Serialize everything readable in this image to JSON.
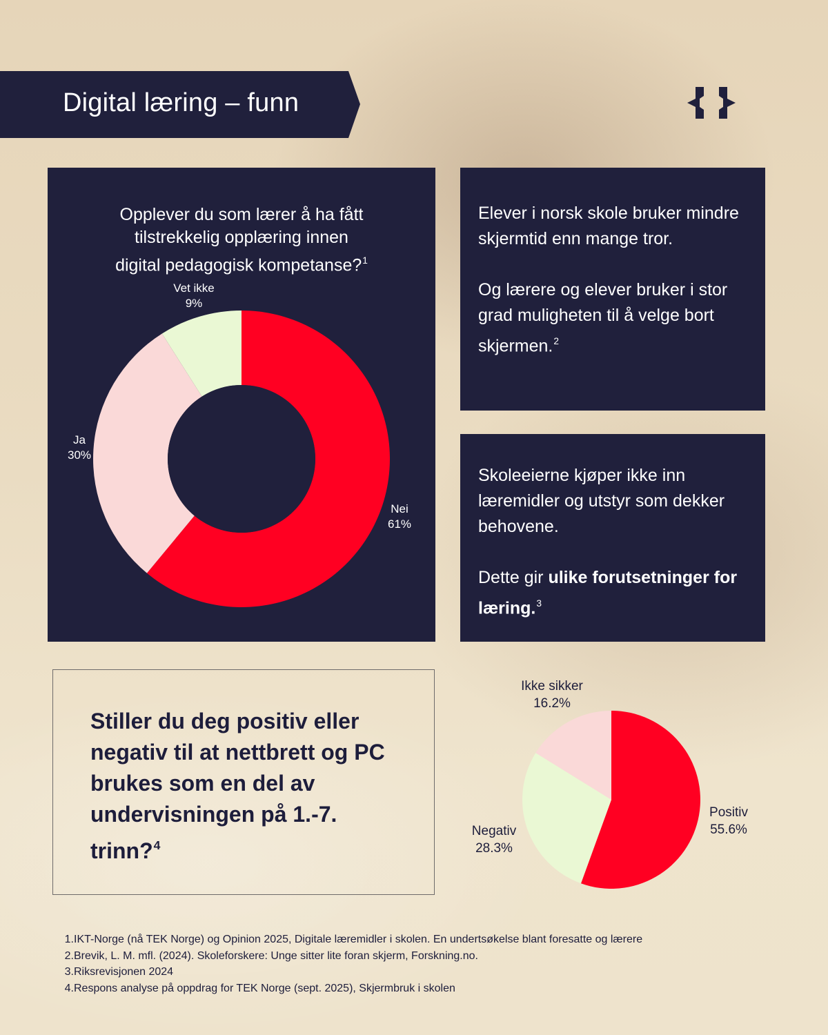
{
  "header": {
    "title": "Digital læring – funn"
  },
  "brand": {
    "logo_icon": "curly-braces-logo-icon",
    "color": "#20203c"
  },
  "donut_panel": {
    "question_lines": [
      "Opplever du som lærer å ha fått",
      "tilstrekkelig opplæring innen",
      "digital pedagogisk kompetanse?"
    ],
    "footnote_ref": "1"
  },
  "text_panel_1": {
    "paragraph1": "Elever i norsk skole bruker mindre skjermtid enn mange tror.",
    "paragraph2": "Og lærere og elever bruker i stor grad muligheten til å velge bort skjermen.",
    "footnote_ref": "2"
  },
  "text_panel_2": {
    "paragraph1": "Skoleeierne kjøper ikke inn læremidler og utstyr som dekker behovene.",
    "paragraph2_prefix": "Dette gir ",
    "paragraph2_bold": "ulike forutsetninger for læring",
    "paragraph2_suffix": ".",
    "footnote_ref": "3"
  },
  "question_box": {
    "text": "Stiller du deg positiv eller negativ til at nettbrett og PC brukes som en del av undervisningen på 1.-7. trinn?",
    "footnote_ref": "4"
  },
  "chart_data": [
    {
      "type": "pie",
      "variant": "donut",
      "categories": [
        "Nei",
        "Ja",
        "Vet ikke"
      ],
      "values": [
        61,
        30,
        9
      ],
      "value_labels": [
        "61%",
        "30%",
        "9%"
      ],
      "colors": [
        "#ff0022",
        "#fad9d8",
        "#eaf8d4"
      ]
    },
    {
      "type": "pie",
      "categories": [
        "Positiv",
        "Negativ",
        "Ikke sikker"
      ],
      "values": [
        55.6,
        28.3,
        16.2
      ],
      "value_labels": [
        "55.6%",
        "28.3%",
        "16.2%"
      ],
      "colors": [
        "#ff0022",
        "#eaf8d4",
        "#fad9d8"
      ]
    }
  ],
  "footnotes": [
    {
      "num": "1.",
      "text": "IKT-Norge (nå TEK Norge) og Opinion 2025, Digitale læremidler i skolen. En undertsøkelse blant foresatte og lærere"
    },
    {
      "num": "2.",
      "text": "Brevik, L. M. mfl. (2024). Skoleforskere: Unge sitter lite foran skjerm, Forskning.no."
    },
    {
      "num": "3.",
      "text": "Riksrevisjonen 2024"
    },
    {
      "num": "4.",
      "text": "Respons analyse på oppdrag for TEK Norge  (sept. 2025), Skjermbruk i skolen"
    }
  ]
}
